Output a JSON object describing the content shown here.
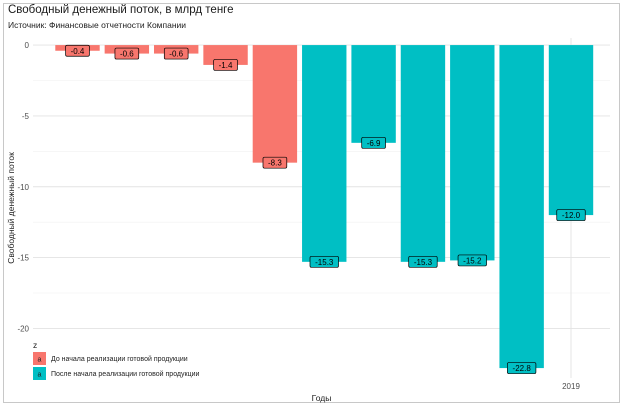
{
  "chart_data": {
    "type": "bar",
    "title": "Свободный денежный поток, в млрд тенге",
    "subtitle": "Источник: Финансовые отчетности Компании",
    "xlabel": "Годы",
    "ylabel": "Свободный денежный поток",
    "ylim": [
      -23.5,
      0.5
    ],
    "yticks": [
      0,
      -5,
      -10,
      -15,
      -20
    ],
    "ytick_labels": [
      "0",
      "-5",
      "-10",
      "-15",
      "-20"
    ],
    "categories": [
      "",
      "",
      "",
      "",
      "",
      "",
      "",
      "",
      "",
      "",
      "2019"
    ],
    "values": [
      -0.4,
      -0.6,
      -0.6,
      -1.4,
      -8.3,
      -15.3,
      -6.9,
      -15.3,
      -15.2,
      -22.8,
      -12.0
    ],
    "value_labels": [
      "-0.4",
      "-0.6",
      "-0.6",
      "-1.4",
      "-8.3",
      "-15.3",
      "-6.9",
      "-15.3",
      "-15.2",
      "-22.8",
      "-12.0"
    ],
    "groups": [
      0,
      0,
      0,
      0,
      0,
      1,
      1,
      1,
      1,
      1,
      1
    ],
    "legend": {
      "title": "z",
      "position": "bottom-left",
      "swatch_text": "a",
      "entries": [
        {
          "label": "До начала реализации готовой продукции",
          "color": "#F8766D"
        },
        {
          "label": "После начала реализации готовой продукции",
          "color": "#00BFC4"
        }
      ]
    },
    "grid": true
  }
}
